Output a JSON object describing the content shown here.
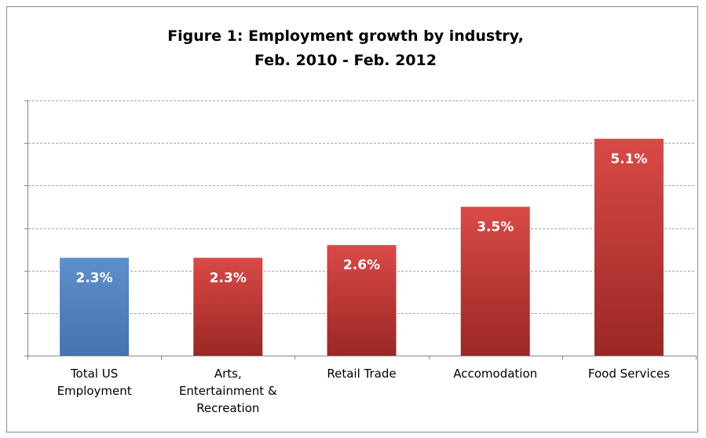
{
  "chart_data": {
    "type": "bar",
    "title": "Figure 1:  Employment growth by industry, Feb. 2010 - Feb. 2012",
    "title_lines": [
      "Figure 1:  Employment growth by industry,",
      "Feb. 2010 - Feb. 2012"
    ],
    "xlabel": "",
    "ylabel": "",
    "categories": [
      "Total US Employment",
      "Arts, Entertainment & Recreation",
      "Retail Trade",
      "Accomodation",
      "Food Services"
    ],
    "category_lines": [
      [
        "Total US",
        "Employment"
      ],
      [
        "Arts,",
        "Entertainment &",
        "Recreation"
      ],
      [
        "Retail Trade"
      ],
      [
        "Accomodation"
      ],
      [
        "Food Services"
      ]
    ],
    "values": [
      2.3,
      2.3,
      2.6,
      3.5,
      5.1
    ],
    "data_labels": [
      "2.3%",
      "2.3%",
      "2.6%",
      "3.5%",
      "5.1%"
    ],
    "unit": "%",
    "ylim": [
      0,
      6
    ],
    "y_gridline_step": 1,
    "grid": true,
    "legend": "none",
    "colors": {
      "highlight": "#4f81bd",
      "bar": "#c0392b",
      "bar_light": "#d94a47",
      "bar_dark": "#9a2724",
      "highlight_light": "#5d8fcb",
      "highlight_dark": "#4574ae",
      "gridline": "#a6a6a6",
      "axis": "#868686",
      "value_label": "#ffffff",
      "text": "#000000",
      "frame": "#8c8c8c"
    },
    "bar_color_keys": [
      "highlight",
      "bar",
      "bar",
      "bar",
      "bar"
    ]
  }
}
